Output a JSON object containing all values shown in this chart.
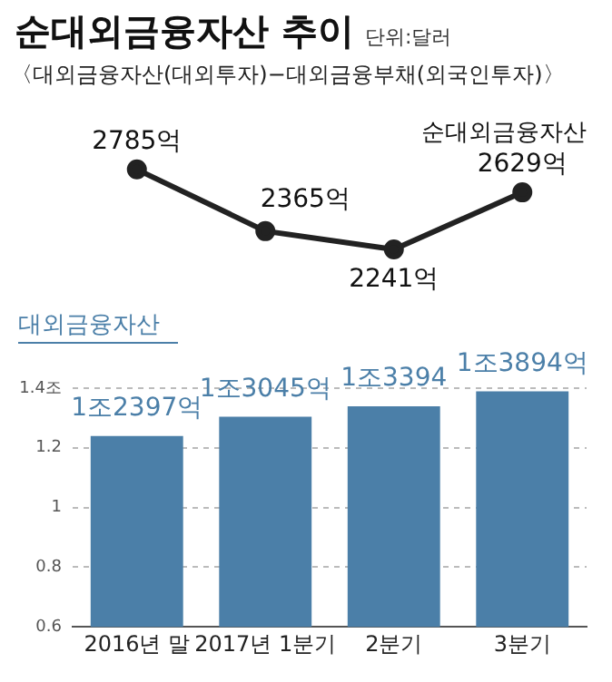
{
  "chart_data": [
    {
      "type": "line",
      "title": "순대외금융자산 추이",
      "subtitle": "〈대외금융자산(대외투자)−대외금융부채(외국인투자)〉",
      "annotations": [
        "단위:달러"
      ],
      "categories": [
        null,
        null,
        null,
        null
      ],
      "series": [
        {
          "name": "순대외금융자산",
          "color": "#222222",
          "values": [
            2785,
            2365,
            2241,
            2629
          ],
          "value_labels": [
            "2785억",
            "2365억",
            "2241억",
            "2629억"
          ]
        }
      ],
      "tick_labels": false,
      "legend": false,
      "marker": "circle",
      "line_style": "solid"
    },
    {
      "type": "bar",
      "categories": [
        "2016년 말",
        "2017년 1분기",
        "2분기",
        "3분기"
      ],
      "series": [
        {
          "name": "대외금융자산",
          "color": "#4b7fa8",
          "values": [
            1.2397,
            1.3045,
            1.3394,
            1.3894
          ],
          "value_labels": [
            "1조2397억",
            "1조3045억",
            "1조3394",
            "1조3894억"
          ]
        }
      ],
      "ylim": [
        0.6,
        1.4
      ],
      "yticks": [
        0.6,
        0.8,
        1,
        1.2,
        {
          "value": 1.4,
          "label": "1.4조"
        }
      ],
      "grid": "y",
      "legend": false
    }
  ]
}
